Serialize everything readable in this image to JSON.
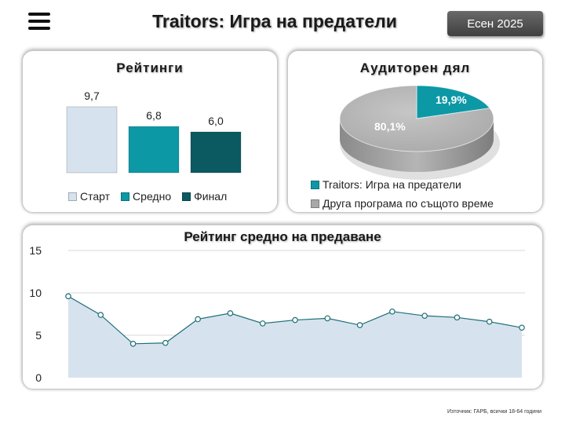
{
  "header": {
    "title": "Traitors: Игра на предатели",
    "season_label": "Есен 2025",
    "menu_icon": "hamburger-menu-icon"
  },
  "ratings_panel": {
    "title": "Рейтинги"
  },
  "share_panel": {
    "title": "Аудиторен дял"
  },
  "line_panel": {
    "title": "Рейтинг средно на предаване"
  },
  "footnote": "Източник: ГАРБ, всички 18-64 години",
  "chart_data": [
    {
      "type": "bar",
      "categories": [
        "Старт",
        "Средно",
        "Финал"
      ],
      "values": [
        9.7,
        6.8,
        6.0
      ],
      "value_labels": [
        "9,7",
        "6,8",
        "6,0"
      ],
      "colors": [
        "#d6e3ee",
        "#0d98a6",
        "#0b5a62"
      ],
      "legend": [
        "Старт",
        "Средно",
        "Финал"
      ],
      "legend_position": "bottom",
      "ylim": [
        0,
        12
      ]
    },
    {
      "type": "pie",
      "labels": [
        "Traitors: Игра на предатели",
        "Друга програма по същото време"
      ],
      "values": [
        19.9,
        80.1
      ],
      "value_labels": [
        "19,9%",
        "80,1%"
      ],
      "colors": [
        "#0d98a6",
        "#a8a8a8"
      ],
      "legend_position": "bottom"
    },
    {
      "type": "area",
      "x": [
        1,
        2,
        3,
        4,
        5,
        6,
        7,
        8,
        9,
        10,
        11,
        12,
        13,
        14,
        15
      ],
      "values": [
        9.6,
        7.4,
        4.0,
        4.1,
        6.9,
        7.6,
        6.4,
        6.8,
        7.0,
        6.2,
        7.8,
        7.3,
        7.1,
        6.6,
        5.9
      ],
      "ylim": [
        0,
        15
      ],
      "yticks": [
        "0",
        "5",
        "10",
        "15"
      ],
      "grid": true,
      "colors": {
        "line": "#1f6f76",
        "fill": "#d6e3ee"
      }
    }
  ]
}
